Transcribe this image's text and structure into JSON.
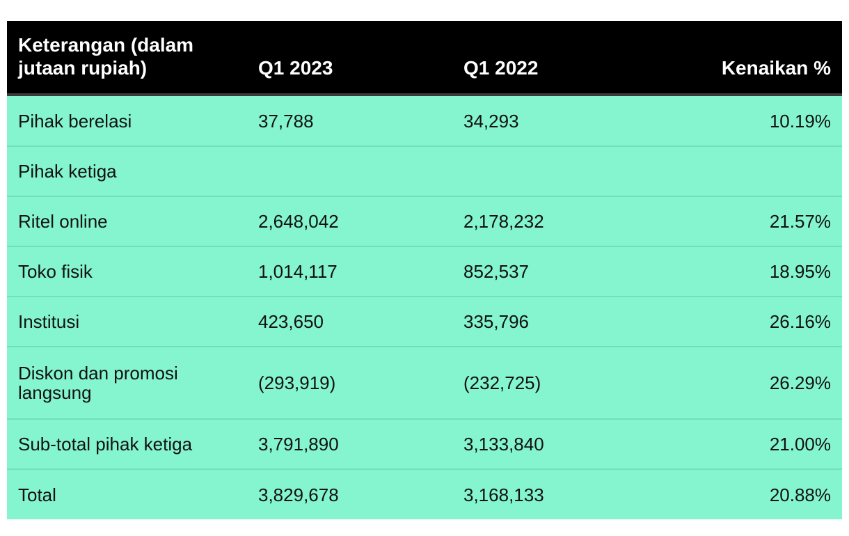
{
  "table": {
    "headers": [
      "Keterangan (dalam jutaan rupiah)",
      "Q1 2023",
      "Q1 2022",
      "Kenaikan %"
    ],
    "rows": [
      [
        "Pihak berelasi",
        "37,788",
        "34,293",
        "10.19%"
      ],
      [
        "Pihak ketiga",
        "",
        "",
        ""
      ],
      [
        "Ritel online",
        "2,648,042",
        "2,178,232",
        "21.57%"
      ],
      [
        "Toko fisik",
        "1,014,117",
        "852,537",
        "18.95%"
      ],
      [
        "Institusi",
        "423,650",
        "335,796",
        "26.16%"
      ],
      [
        "Diskon dan promosi langsung",
        "(293,919)",
        "(232,725)",
        "26.29%"
      ],
      [
        "Sub-total pihak ketiga",
        "3,791,890",
        "3,133,840",
        "21.00%"
      ],
      [
        "Total",
        "3,829,678",
        "3,168,133",
        "20.88%"
      ]
    ]
  },
  "colors": {
    "header_bg": "#000000",
    "header_text": "#ffffff",
    "row_bg": "#84f5cf",
    "row_divider": "#72dfba"
  }
}
